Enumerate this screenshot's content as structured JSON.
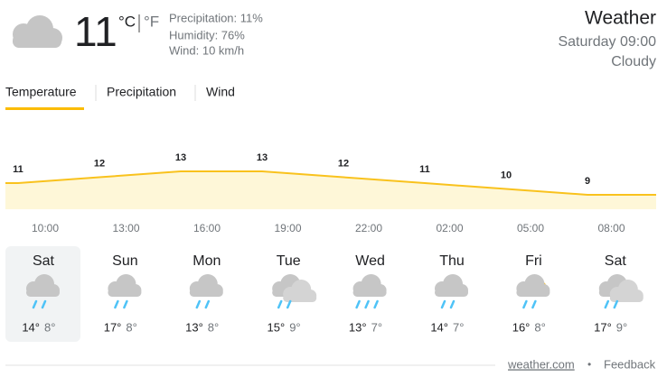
{
  "current": {
    "temperature": "11",
    "unit_c": "°C",
    "unit_f": "°F",
    "precipitation": "Precipitation: 11%",
    "humidity": "Humidity: 76%",
    "wind": "Wind: 10 km/h"
  },
  "header": {
    "title": "Weather",
    "datetime": "Saturday 09:00",
    "condition": "Cloudy"
  },
  "tabs": [
    "Temperature",
    "Precipitation",
    "Wind"
  ],
  "temperature_chart": {
    "values": [
      11,
      12,
      13,
      13,
      12,
      11,
      10,
      9
    ],
    "times": [
      "10:00",
      "13:00",
      "16:00",
      "19:00",
      "22:00",
      "02:00",
      "05:00",
      "08:00"
    ]
  },
  "days": [
    {
      "name": "Sat",
      "high": "14°",
      "low": "8°"
    },
    {
      "name": "Sun",
      "high": "17°",
      "low": "8°"
    },
    {
      "name": "Mon",
      "high": "13°",
      "low": "8°"
    },
    {
      "name": "Tue",
      "high": "15°",
      "low": "9°"
    },
    {
      "name": "Wed",
      "high": "13°",
      "low": "7°"
    },
    {
      "name": "Thu",
      "high": "14°",
      "low": "7°"
    },
    {
      "name": "Fri",
      "high": "16°",
      "low": "8°"
    },
    {
      "name": "Sat",
      "high": "17°",
      "low": "9°"
    }
  ],
  "footer": {
    "source": "weather.com",
    "feedback": "Feedback"
  }
}
